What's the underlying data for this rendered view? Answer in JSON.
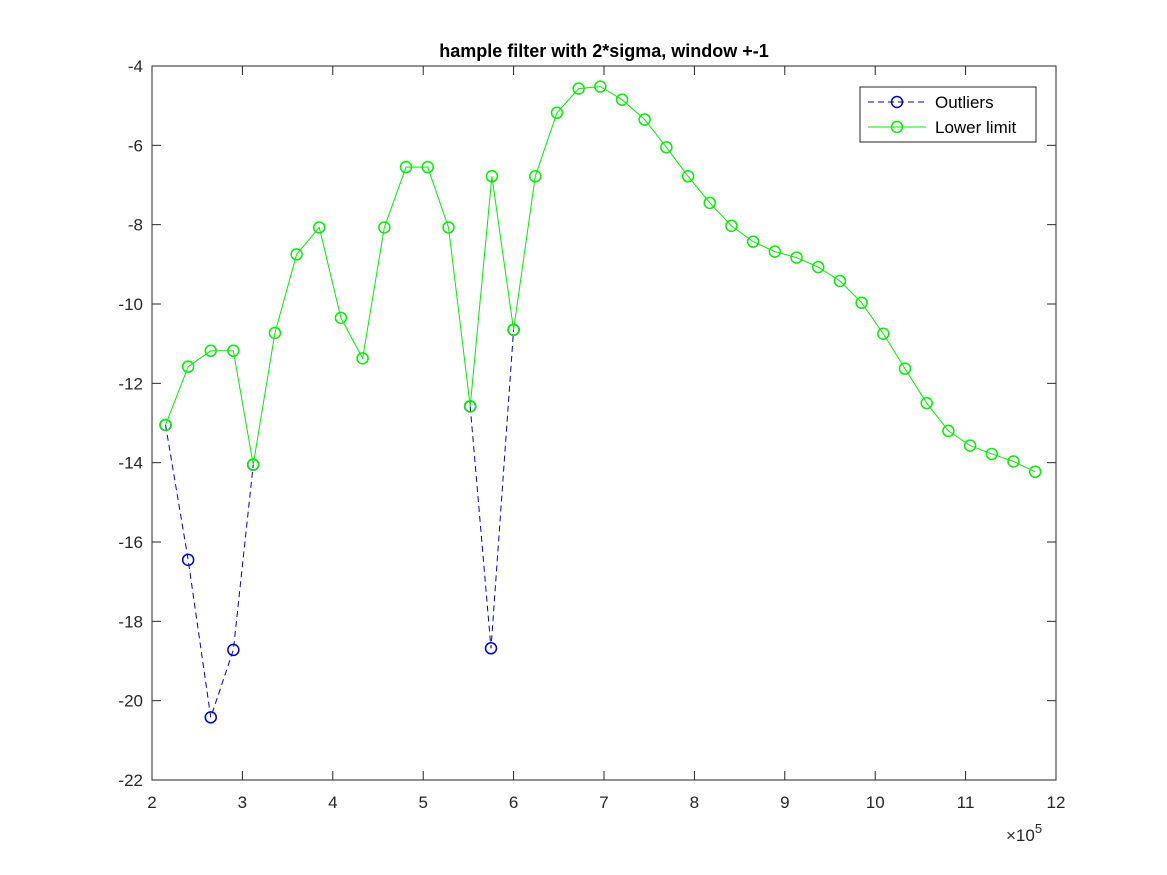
{
  "chart_data": {
    "type": "line",
    "title": "hample filter with 2*sigma, window +-1",
    "xlabel": "",
    "ylabel": "",
    "xlim": [
      2,
      12
    ],
    "ylim": [
      -22,
      -4
    ],
    "x_exponent_label": "×10",
    "x_exponent_power": "5",
    "grid": false,
    "legend_position": "top-right",
    "x_ticks": [
      "2",
      "3",
      "4",
      "5",
      "6",
      "7",
      "8",
      "9",
      "10",
      "11",
      "12"
    ],
    "y_ticks": [
      "-4",
      "-6",
      "-8",
      "-10",
      "-12",
      "-14",
      "-16",
      "-18",
      "-20",
      "-22"
    ],
    "series": [
      {
        "name": "Outliers",
        "color": "#0000cc",
        "line_style": "dashed",
        "marker": "circle",
        "segments": [
          [
            [
              2.15,
              -13.05
            ],
            [
              2.4,
              -16.45
            ],
            [
              2.65,
              -20.42
            ],
            [
              2.9,
              -18.72
            ],
            [
              3.12,
              -14.05
            ]
          ],
          [
            [
              5.52,
              -12.58
            ],
            [
              5.75,
              -18.68
            ],
            [
              6.0,
              -10.65
            ]
          ]
        ]
      },
      {
        "name": "Lower limit",
        "color": "#00ee00",
        "line_style": "solid",
        "marker": "circle",
        "x": [
          2.15,
          2.4,
          2.65,
          2.9,
          3.12,
          3.36,
          3.6,
          3.85,
          4.09,
          4.33,
          4.57,
          4.81,
          5.05,
          5.28,
          5.52,
          5.76,
          6.0,
          6.24,
          6.48,
          6.72,
          6.96,
          7.2,
          7.45,
          7.69,
          7.93,
          8.17,
          8.41,
          8.65,
          8.89,
          9.13,
          9.37,
          9.61,
          9.85,
          10.09,
          10.33,
          10.57,
          10.81,
          11.05,
          11.29,
          11.53,
          11.77
        ],
        "values": [
          -13.05,
          -11.58,
          -11.18,
          -11.18,
          -14.05,
          -10.73,
          -8.75,
          -8.07,
          -10.35,
          -11.37,
          -8.07,
          -6.55,
          -6.55,
          -8.07,
          -12.58,
          -6.78,
          -10.65,
          -6.78,
          -5.18,
          -4.57,
          -4.52,
          -4.85,
          -5.35,
          -6.05,
          -6.78,
          -7.45,
          -8.03,
          -8.43,
          -8.68,
          -8.83,
          -9.07,
          -9.42,
          -9.97,
          -10.75,
          -11.63,
          -12.5,
          -13.2,
          -13.57,
          -13.78,
          -13.97,
          -14.23
        ]
      }
    ]
  }
}
